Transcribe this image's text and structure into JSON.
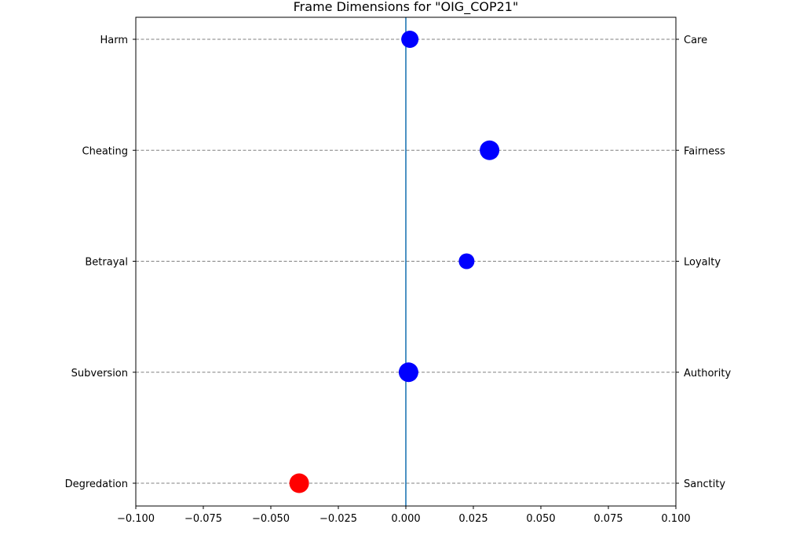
{
  "chart_data": {
    "type": "scatter",
    "title": "Frame Dimensions for \"OIG_COP21\"",
    "xlabel": "",
    "ylabel": "",
    "xlim": [
      -0.1,
      0.1
    ],
    "x_ticks": [
      -0.1,
      -0.075,
      -0.05,
      -0.025,
      0.0,
      0.025,
      0.05,
      0.075,
      0.1
    ],
    "x_tick_labels": [
      "−0.100",
      "−0.075",
      "−0.050",
      "−0.025",
      "0.000",
      "0.025",
      "0.050",
      "0.075",
      "0.100"
    ],
    "left_labels": [
      "Harm",
      "Cheating",
      "Betrayal",
      "Subversion",
      "Degredation"
    ],
    "right_labels": [
      "Care",
      "Fairness",
      "Loyalty",
      "Authority",
      "Sanctity"
    ],
    "grid": "horizontal dashed lines at each dimension",
    "reference_line_x": 0.0,
    "points": [
      {
        "dimension": "Care",
        "value": 0.0015,
        "color": "#0000ff",
        "size": "medium"
      },
      {
        "dimension": "Fairness",
        "value": 0.031,
        "color": "#0000ff",
        "size": "large"
      },
      {
        "dimension": "Loyalty",
        "value": 0.0225,
        "color": "#0000ff",
        "size": "small"
      },
      {
        "dimension": "Authority",
        "value": 0.001,
        "color": "#0000ff",
        "size": "large"
      },
      {
        "dimension": "Sanctity",
        "value": -0.0395,
        "color": "#ff0000",
        "size": "large"
      }
    ],
    "colors": {
      "positive": "#0000ff",
      "negative": "#ff0000",
      "reference_line": "#1f77b4",
      "grid": "#808080"
    }
  }
}
